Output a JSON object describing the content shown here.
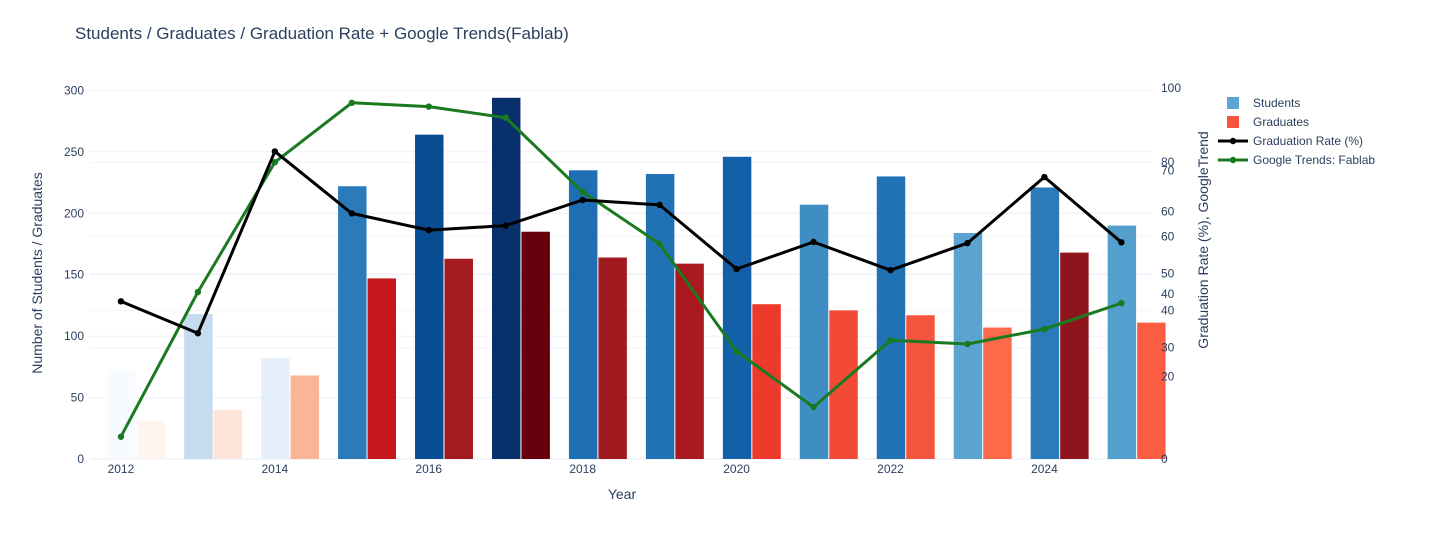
{
  "chart_data": {
    "type": "bar",
    "title": "Students / Graduates / Graduation Rate + Google Trends(Fablab)",
    "xlabel": "Year",
    "ylabel": "Number of Students / Graduates",
    "y2label": "Graduation Rate (%), GoogleTrend",
    "years": [
      2012,
      2013,
      2014,
      2015,
      2016,
      2017,
      2018,
      2019,
      2020,
      2021,
      2022,
      2023,
      2024,
      2025
    ],
    "x_ticks": [
      2012,
      2014,
      2016,
      2018,
      2020,
      2022,
      2024
    ],
    "ylim": [
      0,
      315
    ],
    "y_ticks": [
      0,
      50,
      100,
      150,
      200,
      250,
      300
    ],
    "y2_ticks_a": [
      0,
      30,
      40,
      50,
      60,
      80,
      100
    ],
    "y2_ticks_b": [
      20,
      40,
      60,
      70
    ],
    "series": [
      {
        "name": "Students",
        "type": "bar",
        "values": [
          73,
          118,
          82,
          222,
          264,
          294,
          235,
          232,
          246,
          207,
          230,
          184,
          221,
          190
        ],
        "colors": [
          "#f7fbff",
          "#c6dbef",
          "#e6f0fa",
          "#2b7bba",
          "#084d92",
          "#08306b",
          "#1f6eb3",
          "#2171b5",
          "#1460a8",
          "#3e8ec4",
          "#2171b5",
          "#5ba3d0",
          "#2b7bba",
          "#549fcd"
        ]
      },
      {
        "name": "Graduates",
        "type": "bar",
        "values": [
          31,
          40,
          68,
          147,
          163,
          185,
          164,
          159,
          126,
          121,
          117,
          107,
          168,
          111
        ],
        "colors": [
          "#fff5f0",
          "#fee5d9",
          "#fcb499",
          "#c5171c",
          "#a31a1f",
          "#67000d",
          "#a11a20",
          "#a9191f",
          "#ed392b",
          "#f24a35",
          "#f5553c",
          "#fc6a4a",
          "#8f151c",
          "#fb5d42"
        ]
      },
      {
        "name": "Graduation Rate (%)",
        "type": "line",
        "color": "#000000",
        "values": [
          42.5,
          33.9,
          82.9,
          66.2,
          61.7,
          62.9,
          69.8,
          68.5,
          51.2,
          58.5,
          50.9,
          58.2,
          76.0,
          58.4
        ]
      },
      {
        "name": "Google Trends: Fablab",
        "type": "line",
        "color": "#1a7a1f",
        "values": [
          6,
          45,
          80,
          96,
          95,
          92,
          72,
          58,
          29,
          14,
          32,
          31,
          35,
          42
        ]
      }
    ]
  }
}
